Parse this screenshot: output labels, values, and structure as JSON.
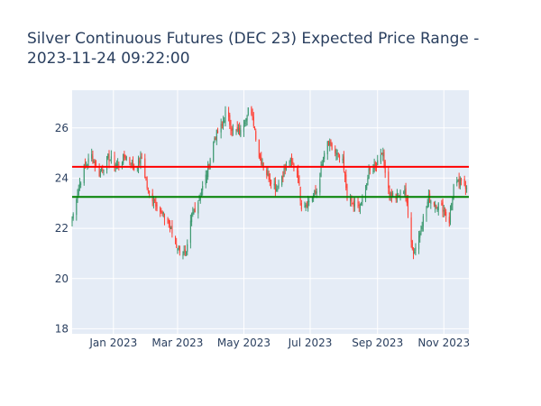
{
  "chart_data": {
    "type": "candlestick",
    "title": [
      "Silver Continuous Futures (DEC 23) Expected Price Range -",
      "2023-11-24 09:22:00"
    ],
    "xlabel": "",
    "ylabel": "",
    "x_range": [
      "2022-11-24",
      "2023-11-24"
    ],
    "ylim": [
      17.8,
      27.5
    ],
    "y_ticks": [
      18,
      20,
      22,
      24,
      26
    ],
    "x_ticks": [
      {
        "date": "2023-01-01",
        "label": "Jan 2023"
      },
      {
        "date": "2023-03-01",
        "label": "Mar 2023"
      },
      {
        "date": "2023-05-01",
        "label": "May 2023"
      },
      {
        "date": "2023-07-01",
        "label": "Jul 2023"
      },
      {
        "date": "2023-09-01",
        "label": "Sep 2023"
      },
      {
        "date": "2023-11-01",
        "label": "Nov 2023"
      }
    ],
    "reference_lines": [
      {
        "y": 24.45,
        "color": "#ff0000"
      },
      {
        "y": 23.25,
        "color": "#008000"
      }
    ],
    "increasing_color": "#3d9970",
    "decreasing_color": "#ff4136",
    "close_keypoints": [
      [
        "2022-11-24",
        22.3
      ],
      [
        "2022-11-28",
        23.3
      ],
      [
        "2022-12-05",
        24.4
      ],
      [
        "2022-12-12",
        24.9
      ],
      [
        "2022-12-19",
        24.2
      ],
      [
        "2022-12-27",
        24.8
      ],
      [
        "2023-01-05",
        24.5
      ],
      [
        "2023-01-12",
        24.9
      ],
      [
        "2023-01-20",
        24.4
      ],
      [
        "2023-01-27",
        24.8
      ],
      [
        "2023-02-02",
        23.4
      ],
      [
        "2023-02-08",
        23.1
      ],
      [
        "2023-02-14",
        22.6
      ],
      [
        "2023-02-21",
        22.2
      ],
      [
        "2023-02-28",
        21.3
      ],
      [
        "2023-03-09",
        20.9
      ],
      [
        "2023-03-14",
        22.5
      ],
      [
        "2023-03-21",
        23.2
      ],
      [
        "2023-03-28",
        24.2
      ],
      [
        "2023-04-04",
        25.6
      ],
      [
        "2023-04-11",
        26.1
      ],
      [
        "2023-04-14",
        26.6
      ],
      [
        "2023-04-21",
        25.9
      ],
      [
        "2023-04-28",
        25.8
      ],
      [
        "2023-05-05",
        26.8
      ],
      [
        "2023-05-10",
        26.2
      ],
      [
        "2023-05-15",
        24.9
      ],
      [
        "2023-05-22",
        24.2
      ],
      [
        "2023-05-31",
        23.6
      ],
      [
        "2023-06-06",
        24.2
      ],
      [
        "2023-06-12",
        24.7
      ],
      [
        "2023-06-19",
        24.3
      ],
      [
        "2023-06-23",
        22.9
      ],
      [
        "2023-06-30",
        23.1
      ],
      [
        "2023-07-07",
        23.5
      ],
      [
        "2023-07-12",
        24.5
      ],
      [
        "2023-07-17",
        25.4
      ],
      [
        "2023-07-24",
        25.0
      ],
      [
        "2023-07-31",
        24.6
      ],
      [
        "2023-08-04",
        23.3
      ],
      [
        "2023-08-10",
        22.9
      ],
      [
        "2023-08-17",
        22.9
      ],
      [
        "2023-08-24",
        24.2
      ],
      [
        "2023-08-31",
        24.6
      ],
      [
        "2023-09-05",
        25.1
      ],
      [
        "2023-09-12",
        23.4
      ],
      [
        "2023-09-19",
        23.2
      ],
      [
        "2023-09-26",
        23.6
      ],
      [
        "2023-09-29",
        22.5
      ],
      [
        "2023-10-04",
        21.0
      ],
      [
        "2023-10-09",
        21.7
      ],
      [
        "2023-10-13",
        22.4
      ],
      [
        "2023-10-18",
        23.2
      ],
      [
        "2023-10-24",
        23.0
      ],
      [
        "2023-10-31",
        22.8
      ],
      [
        "2023-11-06",
        22.3
      ],
      [
        "2023-11-10",
        23.7
      ],
      [
        "2023-11-16",
        23.8
      ],
      [
        "2023-11-22",
        23.7
      ]
    ]
  }
}
